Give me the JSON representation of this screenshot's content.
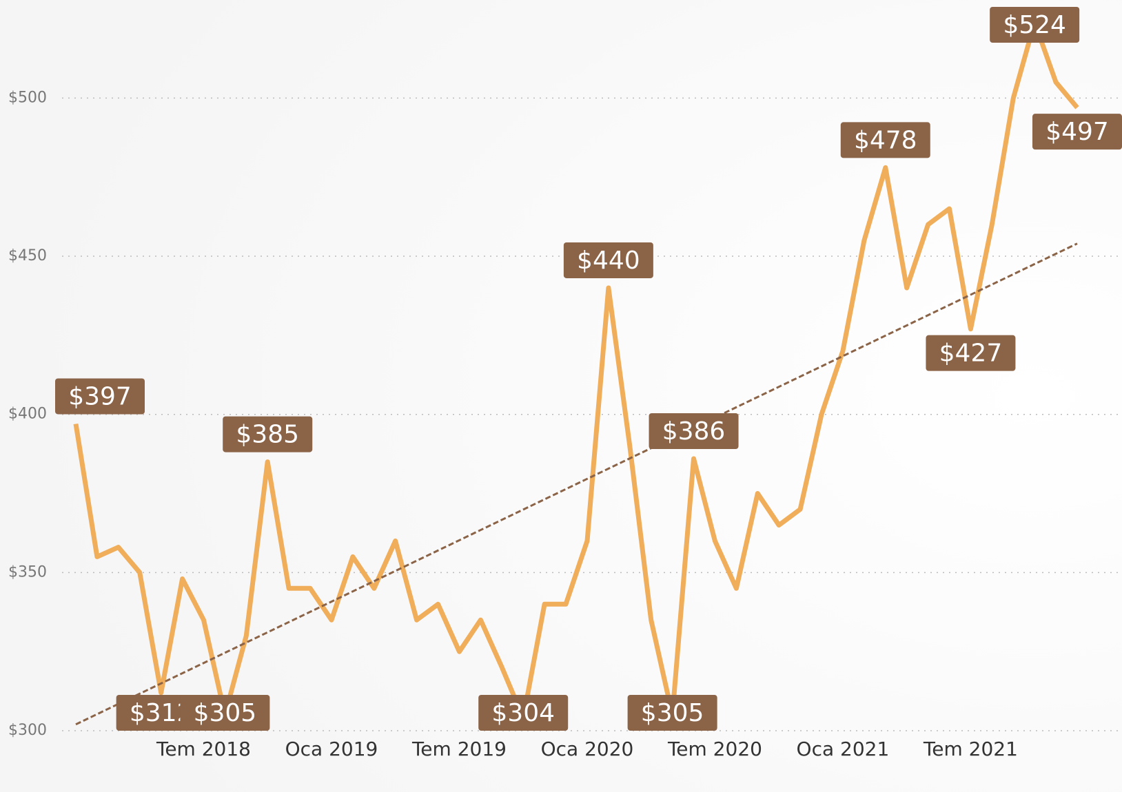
{
  "chart_data": {
    "type": "line",
    "x": [
      "2018-01",
      "2018-02",
      "2018-03",
      "2018-04",
      "2018-05",
      "2018-06",
      "2018-07",
      "2018-08",
      "2018-09",
      "2018-10",
      "2018-11",
      "2018-12",
      "2019-01",
      "2019-02",
      "2019-03",
      "2019-04",
      "2019-05",
      "2019-06",
      "2019-07",
      "2019-08",
      "2019-09",
      "2019-10",
      "2019-11",
      "2019-12",
      "2020-01",
      "2020-02",
      "2020-03",
      "2020-04",
      "2020-05",
      "2020-06",
      "2020-07",
      "2020-08",
      "2020-09",
      "2020-10",
      "2020-11",
      "2020-12",
      "2021-01",
      "2021-02",
      "2021-03",
      "2021-04",
      "2021-05",
      "2021-06",
      "2021-07",
      "2021-08",
      "2021-09",
      "2021-10",
      "2021-11",
      "2021-12"
    ],
    "series": [
      {
        "color": "#f0ad5a",
        "values": [
          397,
          355,
          358,
          350,
          312,
          348,
          335,
          305,
          330,
          385,
          345,
          345,
          335,
          355,
          345,
          360,
          335,
          340,
          325,
          335,
          320,
          304,
          340,
          340,
          360,
          440,
          390,
          335,
          305,
          386,
          360,
          345,
          375,
          365,
          370,
          400,
          420,
          455,
          478,
          440,
          460,
          465,
          427,
          460,
          500,
          524,
          505,
          497
        ],
        "value_labels": [
          "$397",
          null,
          null,
          null,
          "$312",
          null,
          null,
          "$305",
          null,
          "$385",
          null,
          null,
          null,
          null,
          null,
          null,
          null,
          null,
          null,
          null,
          null,
          "$304",
          null,
          null,
          null,
          "$440",
          null,
          null,
          "$305",
          "$386",
          null,
          null,
          null,
          null,
          null,
          null,
          null,
          null,
          "$478",
          null,
          null,
          null,
          "$427",
          null,
          null,
          "$524",
          null,
          "$497"
        ]
      }
    ],
    "trend": [
      302,
      454
    ],
    "trend_color": "#8b6347",
    "label_color": "#8b6347",
    "ylim": [
      300,
      531
    ],
    "yticks": [
      {
        "value": 300,
        "label": "$300"
      },
      {
        "value": 350,
        "label": "$350"
      },
      {
        "value": 400,
        "label": "$400"
      },
      {
        "value": 450,
        "label": "$450"
      },
      {
        "value": 500,
        "label": "$500"
      }
    ],
    "xticks": [
      {
        "value": "2018-07",
        "label": "Tem 2018"
      },
      {
        "value": "2019-01",
        "label": "Oca 2019"
      },
      {
        "value": "2019-07",
        "label": "Tem 2019"
      },
      {
        "value": "2020-01",
        "label": "Oca 2020"
      },
      {
        "value": "2020-07",
        "label": "Tem 2020"
      },
      {
        "value": "2021-01",
        "label": "Oca 2021"
      },
      {
        "value": "2021-07",
        "label": "Tem 2021"
      }
    ],
    "grid": true
  }
}
